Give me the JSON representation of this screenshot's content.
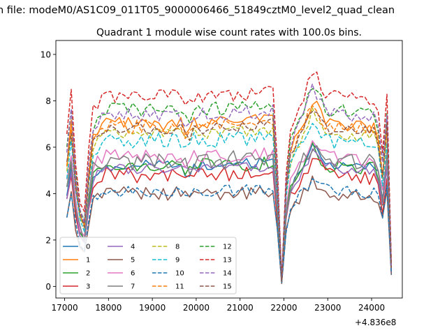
{
  "figure": {
    "suptitle": "n file: modeM0/AS1C09_011T05_9000006466_51849cztM0_level2_quad_clean"
  },
  "chart_data": {
    "type": "line",
    "title": "Quadrant 1 module wise count rates with 100.0s bins.",
    "xlabel": "",
    "ylabel": "",
    "x_offset_label": "+4.836e8",
    "xlim": [
      16800,
      24700
    ],
    "ylim": [
      -0.5,
      10.6
    ],
    "x_ticks": [
      17000,
      18000,
      19000,
      20000,
      21000,
      22000,
      23000,
      24000
    ],
    "x_tick_labels": [
      "17000",
      "18000",
      "19000",
      "20000",
      "21000",
      "22000",
      "23000",
      "24000"
    ],
    "y_ticks": [
      0,
      2,
      4,
      6,
      8,
      10
    ],
    "y_tick_labels": [
      "0",
      "2",
      "4",
      "6",
      "8",
      "10"
    ],
    "x_start": 17050,
    "x_step": 100,
    "n_points": 75,
    "legend_location": "lower left",
    "legend_columns": 4,
    "series": [
      {
        "name": "0",
        "color": "#1f77b4",
        "dash": "solid",
        "base": 5.2,
        "amp": 0.25
      },
      {
        "name": "1",
        "color": "#ff7f0e",
        "dash": "solid",
        "base": 7.0,
        "amp": 0.3
      },
      {
        "name": "2",
        "color": "#2ca02c",
        "dash": "solid",
        "base": 5.2,
        "amp": 0.3
      },
      {
        "name": "3",
        "color": "#d62728",
        "dash": "solid",
        "base": 4.8,
        "amp": 0.35
      },
      {
        "name": "4",
        "color": "#9467bd",
        "dash": "solid",
        "base": 5.1,
        "amp": 0.25
      },
      {
        "name": "5",
        "color": "#8c564b",
        "dash": "solid",
        "base": 4.0,
        "amp": 0.3
      },
      {
        "name": "6",
        "color": "#e377c2",
        "dash": "solid",
        "base": 5.6,
        "amp": 0.3
      },
      {
        "name": "7",
        "color": "#7f7f7f",
        "dash": "solid",
        "base": 5.4,
        "amp": 0.4
      },
      {
        "name": "8",
        "color": "#bcbd22",
        "dash": "dashed",
        "base": 6.6,
        "amp": 0.25
      },
      {
        "name": "9",
        "color": "#17becf",
        "dash": "dashed",
        "base": 6.3,
        "amp": 0.35
      },
      {
        "name": "10",
        "color": "#1f77b4",
        "dash": "dashed",
        "base": 4.1,
        "amp": 0.25
      },
      {
        "name": "11",
        "color": "#ff7f0e",
        "dash": "dashed",
        "base": 6.9,
        "amp": 0.3
      },
      {
        "name": "12",
        "color": "#2ca02c",
        "dash": "dashed",
        "base": 7.6,
        "amp": 0.3
      },
      {
        "name": "13",
        "color": "#d62728",
        "dash": "dashed",
        "base": 8.2,
        "amp": 0.3
      },
      {
        "name": "14",
        "color": "#9467bd",
        "dash": "dashed",
        "base": 7.4,
        "amp": 0.3
      },
      {
        "name": "15",
        "color": "#8c564b",
        "dash": "dashed",
        "base": 6.8,
        "amp": 0.25
      }
    ],
    "profile_knots": [
      [
        17050,
        0.78
      ],
      [
        17150,
        1.0
      ],
      [
        17250,
        0.65
      ],
      [
        17350,
        0.45
      ],
      [
        17450,
        0.38
      ],
      [
        17550,
        0.7
      ],
      [
        17650,
        0.92
      ],
      [
        17850,
        1.0
      ],
      [
        19700,
        1.0
      ],
      [
        19800,
        0.92
      ],
      [
        19900,
        1.0
      ],
      [
        21700,
        1.02
      ],
      [
        21800,
        1.04
      ],
      [
        21900,
        0.2
      ],
      [
        21960,
        0.0
      ],
      [
        22050,
        0.6
      ],
      [
        22150,
        0.82
      ],
      [
        22300,
        0.92
      ],
      [
        22500,
        1.02
      ],
      [
        22650,
        1.14
      ],
      [
        22800,
        1.08
      ],
      [
        23000,
        1.0
      ],
      [
        24050,
        0.98
      ],
      [
        24150,
        0.92
      ],
      [
        24250,
        0.7
      ],
      [
        24350,
        1.0
      ],
      [
        24450,
        0.12
      ]
    ]
  }
}
